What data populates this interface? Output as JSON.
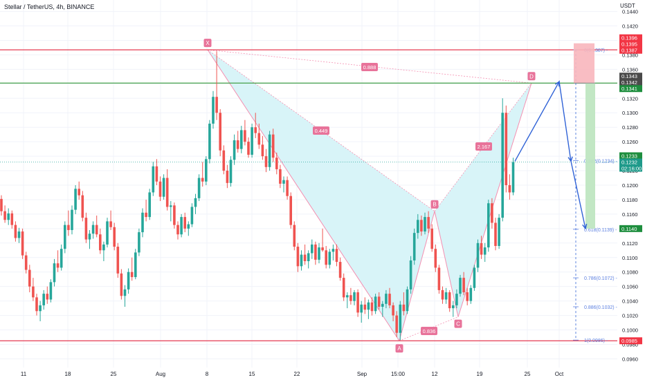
{
  "header": {
    "symbol_title": "Stellar / TetherUS, 4h, BINANCE",
    "currency": "USDT"
  },
  "chart_data": {
    "type": "candlestick",
    "y_axis": {
      "ylim": [
        0.0948,
        0.1452
      ],
      "ticks": [
        "0.1440",
        "0.1420",
        "0.1400",
        "0.1380",
        "0.1360",
        "0.1340",
        "0.1320",
        "0.1300",
        "0.1280",
        "0.1260",
        "0.1240",
        "0.1220",
        "0.1200",
        "0.1180",
        "0.1160",
        "0.1140",
        "0.1120",
        "0.1100",
        "0.1080",
        "0.1060",
        "0.1040",
        "0.1020",
        "0.1000",
        "0.0980",
        "0.0960"
      ]
    },
    "x_axis": {
      "labels": [
        "11",
        "18",
        "25",
        "Aug",
        "8",
        "15",
        "22",
        "Sep",
        "15:00",
        "12",
        "19",
        "25",
        "Oct"
      ]
    },
    "colors": {
      "up": "#26a69a",
      "down": "#ef5350",
      "pattern_fill": "#d8f4f8",
      "pattern_line": "#f48fb1",
      "level_red": "#e53950",
      "level_green": "#43a047",
      "arrow": "#2f62d6"
    },
    "horizontal_levels": [
      {
        "price": 0.1387,
        "color": "red"
      },
      {
        "price": 0.1341,
        "color": "green"
      },
      {
        "price": 0.0985,
        "color": "red"
      }
    ],
    "price_labels": [
      {
        "text": "0.1396",
        "price": 0.1396,
        "style": "red"
      },
      {
        "text": "0.1395",
        "price": 0.1395,
        "style": "red"
      },
      {
        "text": "0.1387",
        "price": 0.1387,
        "style": "red"
      },
      {
        "text": "0.1343",
        "price": 0.1343,
        "style": "dark"
      },
      {
        "text": "0.1342",
        "price": 0.1342,
        "style": "dark"
      },
      {
        "text": "0.1341",
        "price": 0.1341,
        "style": "green"
      },
      {
        "text": "0.1233",
        "price": 0.1233,
        "style": "green"
      },
      {
        "text": "0.1232",
        "price": 0.1232,
        "style": "teal"
      },
      {
        "text": "02:16:00",
        "price": 0.1232,
        "style": "teal-sub"
      },
      {
        "text": "0.1140",
        "price": 0.114,
        "style": "green"
      },
      {
        "text": "0.0985",
        "price": 0.0985,
        "style": "red"
      }
    ],
    "pattern": {
      "points": [
        {
          "label": "X",
          "x": "Aug 8",
          "price": 0.1387
        },
        {
          "label": "A",
          "x": "Sep 5",
          "price": 0.0985
        },
        {
          "label": "B",
          "x": "Sep 11",
          "price": 0.1164
        },
        {
          "label": "C",
          "x": "Sep 15",
          "price": 0.1018
        },
        {
          "label": "D",
          "x": "Sep 26",
          "price": 0.1341
        }
      ],
      "ratios": [
        "0.888",
        "0.449",
        "0.836",
        "2.167"
      ]
    },
    "fibonacci": [
      {
        "label": "0(0.1387)",
        "price": 0.1387
      },
      {
        "label": "0.382(0.1234)",
        "price": 0.1234
      },
      {
        "label": "0.618(0.1139)",
        "price": 0.1139
      },
      {
        "label": "0.786(0.1072)",
        "price": 0.1072
      },
      {
        "label": "0.886(0.1032)",
        "price": 0.1032
      },
      {
        "label": "1(0.0986)",
        "price": 0.0986
      }
    ],
    "current_price": 0.1232,
    "projection_arrow": [
      0.1233,
      0.1343,
      0.1233,
      0.114
    ],
    "risk_box": {
      "entry": 0.1341,
      "stop": 0.1396,
      "target": 0.114
    },
    "candles": [
      [
        0.1181,
        0.1186,
        0.1158,
        0.1164
      ],
      [
        0.1164,
        0.1172,
        0.1148,
        0.1152
      ],
      [
        0.1152,
        0.1168,
        0.1145,
        0.1161
      ],
      [
        0.1161,
        0.1165,
        0.114,
        0.1145
      ],
      [
        0.1145,
        0.115,
        0.1122,
        0.1127
      ],
      [
        0.1127,
        0.1141,
        0.112,
        0.1136
      ],
      [
        0.1136,
        0.114,
        0.1098,
        0.1103
      ],
      [
        0.1103,
        0.1108,
        0.1078,
        0.1083
      ],
      [
        0.1083,
        0.109,
        0.1052,
        0.106
      ],
      [
        0.106,
        0.1072,
        0.104,
        0.1045
      ],
      [
        0.1045,
        0.105,
        0.102,
        0.1026
      ],
      [
        0.1026,
        0.104,
        0.1012,
        0.1034
      ],
      [
        0.1034,
        0.1055,
        0.1028,
        0.105
      ],
      [
        0.105,
        0.106,
        0.1036,
        0.1042
      ],
      [
        0.1042,
        0.107,
        0.1038,
        0.1066
      ],
      [
        0.1066,
        0.1098,
        0.106,
        0.1092
      ],
      [
        0.1092,
        0.111,
        0.108,
        0.1086
      ],
      [
        0.1086,
        0.1118,
        0.1082,
        0.1112
      ],
      [
        0.1112,
        0.115,
        0.1106,
        0.1145
      ],
      [
        0.1145,
        0.1165,
        0.113,
        0.1138
      ],
      [
        0.1138,
        0.1172,
        0.1132,
        0.1166
      ],
      [
        0.1166,
        0.12,
        0.116,
        0.1195
      ],
      [
        0.1195,
        0.1205,
        0.118,
        0.1186
      ],
      [
        0.1186,
        0.1192,
        0.115,
        0.1155
      ],
      [
        0.1155,
        0.1162,
        0.112,
        0.1125
      ],
      [
        0.1125,
        0.1138,
        0.1112,
        0.1133
      ],
      [
        0.1133,
        0.115,
        0.1126,
        0.1145
      ],
      [
        0.1145,
        0.1158,
        0.1128,
        0.1132
      ],
      [
        0.1132,
        0.114,
        0.1105,
        0.111
      ],
      [
        0.111,
        0.1122,
        0.1095,
        0.1118
      ],
      [
        0.1118,
        0.1155,
        0.1114,
        0.115
      ],
      [
        0.115,
        0.1165,
        0.1138,
        0.1142
      ],
      [
        0.1142,
        0.1148,
        0.111,
        0.1115
      ],
      [
        0.1115,
        0.112,
        0.1072,
        0.1078
      ],
      [
        0.1078,
        0.1084,
        0.1042,
        0.1047
      ],
      [
        0.1047,
        0.1062,
        0.1032,
        0.1056
      ],
      [
        0.1056,
        0.1085,
        0.105,
        0.108
      ],
      [
        0.108,
        0.11,
        0.1068,
        0.1073
      ],
      [
        0.1073,
        0.1112,
        0.107,
        0.1107
      ],
      [
        0.1107,
        0.114,
        0.1102,
        0.1135
      ],
      [
        0.1135,
        0.1168,
        0.1128,
        0.1162
      ],
      [
        0.1162,
        0.118,
        0.115,
        0.1156
      ],
      [
        0.1156,
        0.1195,
        0.1152,
        0.119
      ],
      [
        0.119,
        0.1232,
        0.1185,
        0.1226
      ],
      [
        0.1226,
        0.1236,
        0.12,
        0.1205
      ],
      [
        0.1205,
        0.1212,
        0.1178,
        0.1184
      ],
      [
        0.1184,
        0.1215,
        0.118,
        0.121
      ],
      [
        0.121,
        0.1222,
        0.1165,
        0.117
      ],
      [
        0.117,
        0.1178,
        0.115,
        0.1172
      ],
      [
        0.1172,
        0.1176,
        0.114,
        0.1145
      ],
      [
        0.1145,
        0.115,
        0.1125,
        0.1132
      ],
      [
        0.1132,
        0.116,
        0.1128,
        0.1156
      ],
      [
        0.1156,
        0.1162,
        0.1135,
        0.114
      ],
      [
        0.114,
        0.115,
        0.113,
        0.1146
      ],
      [
        0.1146,
        0.1175,
        0.1142,
        0.117
      ],
      [
        0.117,
        0.1188,
        0.116,
        0.1182
      ],
      [
        0.1182,
        0.1215,
        0.1178,
        0.121
      ],
      [
        0.121,
        0.1232,
        0.1198,
        0.1205
      ],
      [
        0.1205,
        0.124,
        0.12,
        0.1236
      ],
      [
        0.1236,
        0.129,
        0.123,
        0.1285
      ],
      [
        0.1285,
        0.133,
        0.1278,
        0.1322
      ],
      [
        0.1322,
        0.1385,
        0.129,
        0.13
      ],
      [
        0.13,
        0.1305,
        0.124,
        0.1248
      ],
      [
        0.1248,
        0.1255,
        0.1215,
        0.122
      ],
      [
        0.122,
        0.1228,
        0.1196,
        0.1203
      ],
      [
        0.1203,
        0.124,
        0.1198,
        0.1235
      ],
      [
        0.1235,
        0.127,
        0.1228,
        0.1262
      ],
      [
        0.1262,
        0.1275,
        0.1245,
        0.125
      ],
      [
        0.125,
        0.1282,
        0.1244,
        0.1276
      ],
      [
        0.1276,
        0.129,
        0.1255,
        0.126
      ],
      [
        0.126,
        0.1266,
        0.1238,
        0.1242
      ],
      [
        0.1242,
        0.1285,
        0.1238,
        0.128
      ],
      [
        0.128,
        0.13,
        0.1265,
        0.1272
      ],
      [
        0.1272,
        0.1285,
        0.125,
        0.1256
      ],
      [
        0.1256,
        0.1268,
        0.1235,
        0.124
      ],
      [
        0.124,
        0.125,
        0.1218,
        0.1225
      ],
      [
        0.1225,
        0.1275,
        0.122,
        0.127
      ],
      [
        0.127,
        0.1278,
        0.1232,
        0.1238
      ],
      [
        0.1238,
        0.1245,
        0.1215,
        0.1222
      ],
      [
        0.1222,
        0.1228,
        0.1196,
        0.1202
      ],
      [
        0.1202,
        0.1212,
        0.119,
        0.1207
      ],
      [
        0.1207,
        0.1212,
        0.118,
        0.1185
      ],
      [
        0.1185,
        0.119,
        0.114,
        0.1145
      ],
      [
        0.1145,
        0.115,
        0.111,
        0.1115
      ],
      [
        0.1115,
        0.112,
        0.108,
        0.1088
      ],
      [
        0.1088,
        0.111,
        0.1082,
        0.1104
      ],
      [
        0.1104,
        0.1118,
        0.109,
        0.1095
      ],
      [
        0.1095,
        0.111,
        0.1085,
        0.1106
      ],
      [
        0.1106,
        0.1125,
        0.1098,
        0.1118
      ],
      [
        0.1118,
        0.1122,
        0.109,
        0.1097
      ],
      [
        0.1097,
        0.112,
        0.1092,
        0.1114
      ],
      [
        0.1114,
        0.114,
        0.1108,
        0.111
      ],
      [
        0.111,
        0.1116,
        0.1085,
        0.109
      ],
      [
        0.109,
        0.1112,
        0.1085,
        0.1108
      ],
      [
        0.1108,
        0.1118,
        0.1096,
        0.1112
      ],
      [
        0.1112,
        0.1118,
        0.1088,
        0.1094
      ],
      [
        0.1094,
        0.11,
        0.1068,
        0.1072
      ],
      [
        0.1072,
        0.1078,
        0.104,
        0.1045
      ],
      [
        0.1045,
        0.1052,
        0.103,
        0.1048
      ],
      [
        0.1048,
        0.1058,
        0.1035,
        0.104
      ],
      [
        0.104,
        0.1055,
        0.1034,
        0.1052
      ],
      [
        0.1052,
        0.1056,
        0.1018,
        0.1024
      ],
      [
        0.1024,
        0.104,
        0.101,
        0.1035
      ],
      [
        0.1035,
        0.1045,
        0.1022,
        0.1028
      ],
      [
        0.1028,
        0.1042,
        0.1015,
        0.1038
      ],
      [
        0.1038,
        0.1045,
        0.102,
        0.1026
      ],
      [
        0.1026,
        0.105,
        0.1022,
        0.1046
      ],
      [
        0.1046,
        0.1052,
        0.1028,
        0.1032
      ],
      [
        0.1032,
        0.104,
        0.1018,
        0.1036
      ],
      [
        0.1036,
        0.1055,
        0.103,
        0.105
      ],
      [
        0.105,
        0.1058,
        0.103,
        0.1034
      ],
      [
        0.1034,
        0.1038,
        0.1012,
        0.102
      ],
      [
        0.102,
        0.1026,
        0.099,
        0.0996
      ],
      [
        0.0996,
        0.104,
        0.0986,
        0.1035
      ],
      [
        0.1035,
        0.1052,
        0.102,
        0.1026
      ],
      [
        0.1026,
        0.106,
        0.1022,
        0.1056
      ],
      [
        0.1056,
        0.1102,
        0.105,
        0.1096
      ],
      [
        0.1096,
        0.114,
        0.109,
        0.1134
      ],
      [
        0.1134,
        0.116,
        0.1126,
        0.1152
      ],
      [
        0.1152,
        0.1158,
        0.113,
        0.1136
      ],
      [
        0.1136,
        0.1162,
        0.1132,
        0.1156
      ],
      [
        0.1156,
        0.1164,
        0.1134,
        0.114
      ],
      [
        0.114,
        0.1146,
        0.1108,
        0.1112
      ],
      [
        0.1112,
        0.1118,
        0.108,
        0.1086
      ],
      [
        0.1086,
        0.109,
        0.105,
        0.1055
      ],
      [
        0.1055,
        0.106,
        0.1036,
        0.1042
      ],
      [
        0.1042,
        0.1058,
        0.1036,
        0.1052
      ],
      [
        0.1052,
        0.1055,
        0.1025,
        0.103
      ],
      [
        0.103,
        0.104,
        0.1018,
        0.1034
      ],
      [
        0.1034,
        0.1056,
        0.103,
        0.105
      ],
      [
        0.105,
        0.1076,
        0.1046,
        0.1072
      ],
      [
        0.1072,
        0.108,
        0.1048,
        0.1052
      ],
      [
        0.1052,
        0.1058,
        0.1034,
        0.104
      ],
      [
        0.104,
        0.1062,
        0.1036,
        0.1058
      ],
      [
        0.1058,
        0.109,
        0.1054,
        0.1086
      ],
      [
        0.1086,
        0.1125,
        0.108,
        0.112
      ],
      [
        0.112,
        0.113,
        0.1098,
        0.1104
      ],
      [
        0.1104,
        0.112,
        0.1094,
        0.1114
      ],
      [
        0.1114,
        0.118,
        0.1108,
        0.1175
      ],
      [
        0.1175,
        0.1182,
        0.114,
        0.1148
      ],
      [
        0.1148,
        0.1155,
        0.111,
        0.1116
      ],
      [
        0.1116,
        0.116,
        0.1112,
        0.1155
      ],
      [
        0.1155,
        0.132,
        0.115,
        0.13
      ],
      [
        0.13,
        0.131,
        0.119,
        0.12
      ],
      [
        0.12,
        0.1215,
        0.118,
        0.119
      ],
      [
        0.119,
        0.1238,
        0.1186,
        0.1232
      ]
    ]
  }
}
